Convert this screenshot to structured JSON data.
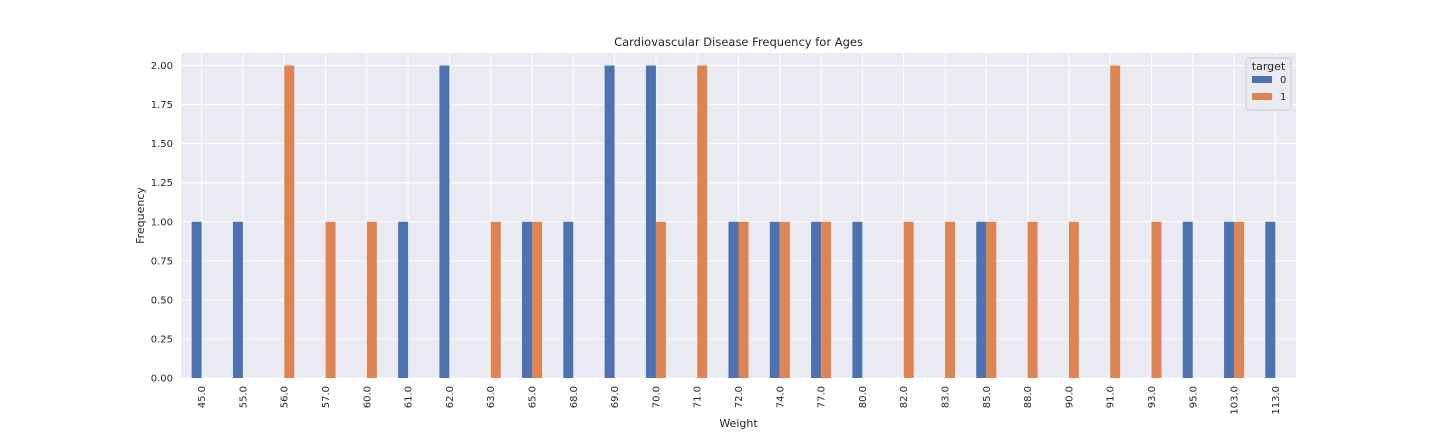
{
  "chart_data": {
    "type": "bar",
    "title": "Cardiovascular Disease Frequency for Ages",
    "xlabel": "Weight",
    "ylabel": "Frequency",
    "ylim": [
      0,
      2.08
    ],
    "yticks": [
      "0.00",
      "0.25",
      "0.50",
      "0.75",
      "1.00",
      "1.25",
      "1.50",
      "1.75",
      "2.00"
    ],
    "grid": true,
    "legend_position": "top-right",
    "legend_title": "target",
    "categories": [
      "45.0",
      "55.0",
      "56.0",
      "57.0",
      "60.0",
      "61.0",
      "62.0",
      "63.0",
      "65.0",
      "68.0",
      "69.0",
      "70.0",
      "71.0",
      "72.0",
      "74.0",
      "77.0",
      "80.0",
      "82.0",
      "83.0",
      "85.0",
      "88.0",
      "90.0",
      "91.0",
      "93.0",
      "95.0",
      "103.0",
      "113.0"
    ],
    "series": [
      {
        "name": "0",
        "color": "#4c72b0",
        "values": [
          1,
          1,
          0,
          0,
          0,
          1,
          2,
          0,
          1,
          1,
          2,
          2,
          0,
          1,
          1,
          1,
          1,
          0,
          0,
          1,
          0,
          0,
          0,
          0,
          1,
          1,
          1
        ]
      },
      {
        "name": "1",
        "color": "#dd8452",
        "values": [
          0,
          0,
          2,
          1,
          1,
          0,
          0,
          1,
          1,
          0,
          0,
          1,
          2,
          1,
          1,
          1,
          0,
          1,
          1,
          1,
          1,
          1,
          2,
          1,
          0,
          1,
          0
        ]
      }
    ],
    "background_color": "#eaeaf2",
    "grid_color": "#ffffff"
  }
}
